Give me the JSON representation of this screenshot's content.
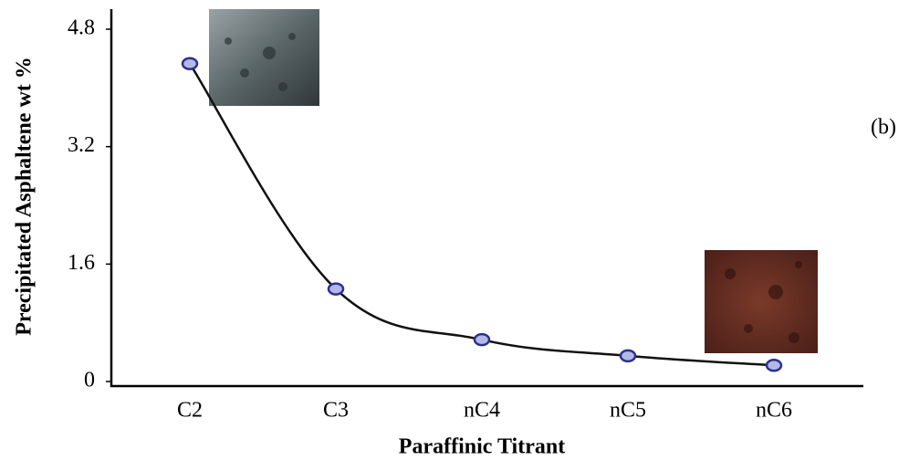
{
  "chart_data": {
    "type": "line",
    "x_label": "Paraffinic Titrant",
    "y_label": "Precipitated Asphaltene wt %",
    "panel_label": "(b)",
    "categories": [
      "C2",
      "C3",
      "nC4",
      "nC5",
      "nC6"
    ],
    "values": [
      4.33,
      1.26,
      0.57,
      0.35,
      0.22
    ],
    "color": "#111111",
    "marker_fill": "#b4b8e4",
    "marker_edge": "#2b3190",
    "ylim": [
      0,
      4.8
    ],
    "yticks": [
      0,
      1.6,
      3.2,
      4.8
    ],
    "grid": false
  }
}
